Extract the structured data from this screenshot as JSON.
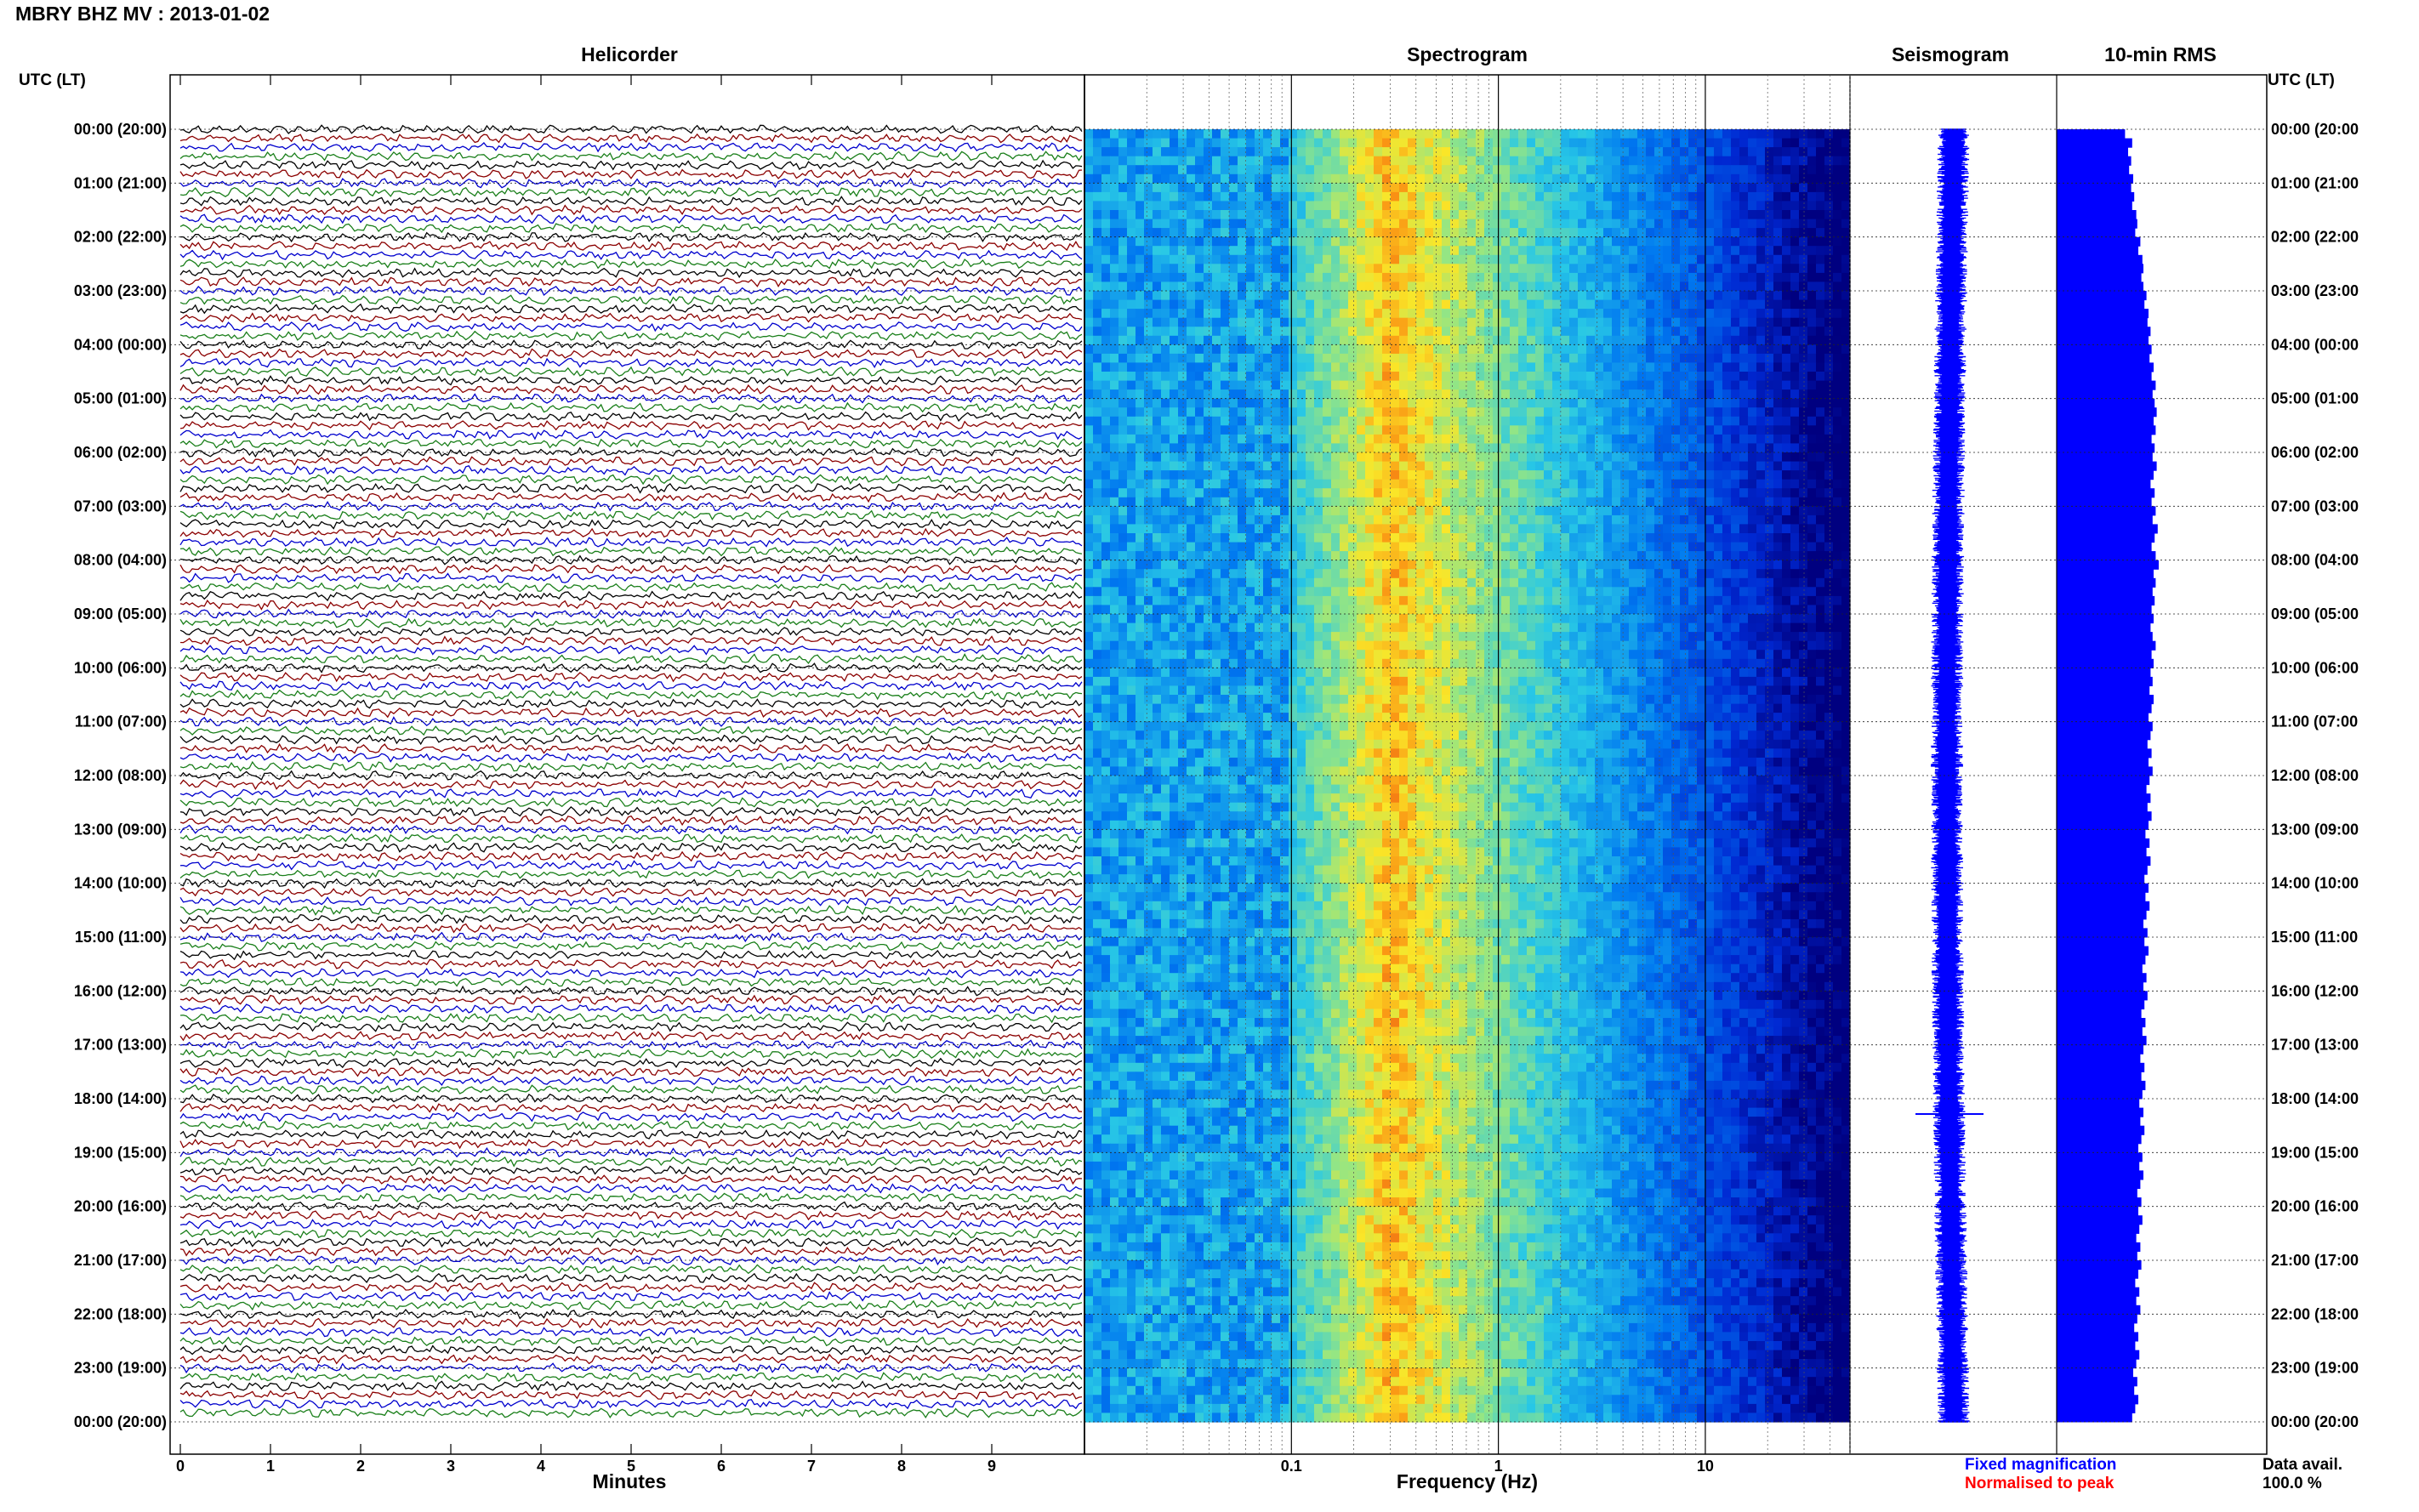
{
  "title": "MBRY BHZ MV : 2013-01-02",
  "left_axis_header": "UTC (LT)",
  "right_axis_header": "UTC (LT)",
  "colors": {
    "trace_cycle": [
      "#000000",
      "#8b0000",
      "#0000cd",
      "#1a7f1a"
    ],
    "seismogram": "#0000ff",
    "rms": "#0000ff",
    "fixed_magnification": "#0000ff",
    "normalised_to_peak": "#ff0000"
  },
  "legend": {
    "fixed": "Fixed magnification",
    "normalised": "Normalised to peak"
  },
  "data_avail": {
    "label": "Data avail.",
    "value": "100.0 %"
  },
  "chart_data": [
    {
      "type": "line",
      "title": "Helicorder",
      "xlabel": "Minutes",
      "xlim": [
        0,
        10
      ],
      "x_ticks": [
        "0",
        "1",
        "2",
        "3",
        "4",
        "5",
        "6",
        "7",
        "8",
        "9"
      ],
      "y_tick_labels": [
        "00:00 (20:00)",
        "01:00 (21:00)",
        "02:00 (22:00)",
        "03:00 (23:00)",
        "04:00 (00:00)",
        "05:00 (01:00)",
        "06:00 (02:00)",
        "07:00 (03:00)",
        "08:00 (04:00)",
        "09:00 (05:00)",
        "10:00 (06:00)",
        "11:00 (07:00)",
        "12:00 (08:00)",
        "13:00 (09:00)",
        "14:00 (10:00)",
        "15:00 (11:00)",
        "16:00 (12:00)",
        "17:00 (13:00)",
        "18:00 (14:00)",
        "19:00 (15:00)",
        "20:00 (16:00)",
        "21:00 (17:00)",
        "22:00 (18:00)",
        "23:00 (19:00)",
        "00:00 (20:00)"
      ],
      "traces_per_hour": 6,
      "hours": 24
    },
    {
      "type": "heatmap",
      "title": "Spectrogram",
      "xlabel": "Frequency (Hz)",
      "x_scale": "log",
      "xlim": [
        0.01,
        50
      ],
      "x_ticks": [
        "0.1",
        "1",
        "10"
      ],
      "x_tick_values": [
        0.1,
        1,
        10
      ],
      "peak_frequency_hz": 0.3
    },
    {
      "type": "line",
      "title": "Seismogram",
      "event_hour_utc": 18
    },
    {
      "type": "bar",
      "title": "10-min RMS",
      "values": [
        0.67,
        0.74,
        0.7,
        0.73,
        0.71,
        0.75,
        0.73,
        0.76,
        0.74,
        0.78,
        0.79,
        0.77,
        0.82,
        0.8,
        0.84,
        0.85,
        0.83,
        0.85,
        0.88,
        0.86,
        0.9,
        0.89,
        0.92,
        0.9,
        0.93,
        0.91,
        0.95,
        0.93,
        0.97,
        0.94,
        0.96,
        0.98,
        0.95,
        0.97,
        0.93,
        0.96,
        0.94,
        0.98,
        0.95,
        0.92,
        0.96,
        0.93,
        0.97,
        0.94,
        0.99,
        0.96,
        0.93,
        0.97,
        1.0,
        0.95,
        0.97,
        0.94,
        0.96,
        0.93,
        0.95,
        0.92,
        0.94,
        0.97,
        0.93,
        0.95,
        0.92,
        0.94,
        0.91,
        0.95,
        0.93,
        0.9,
        0.94,
        0.92,
        0.89,
        0.93,
        0.9,
        0.94,
        0.91,
        0.88,
        0.92,
        0.89,
        0.93,
        0.9,
        0.87,
        0.91,
        0.88,
        0.92,
        0.89,
        0.86,
        0.9,
        0.87,
        0.91,
        0.88,
        0.85,
        0.89,
        0.86,
        0.9,
        0.87,
        0.84,
        0.88,
        0.85,
        0.89,
        0.86,
        0.83,
        0.87,
        0.84,
        0.88,
        0.85,
        0.82,
        0.86,
        0.83,
        0.87,
        0.84,
        0.81,
        0.85,
        0.82,
        0.86,
        0.83,
        0.8,
        0.84,
        0.81,
        0.85,
        0.82,
        0.79,
        0.83,
        0.8,
        0.84,
        0.81,
        0.78,
        0.82,
        0.79,
        0.83,
        0.8,
        0.77,
        0.81,
        0.78,
        0.82,
        0.79,
        0.76,
        0.8,
        0.77,
        0.81,
        0.78,
        0.75,
        0.79,
        0.76,
        0.8,
        0.77,
        0.74
      ]
    }
  ]
}
